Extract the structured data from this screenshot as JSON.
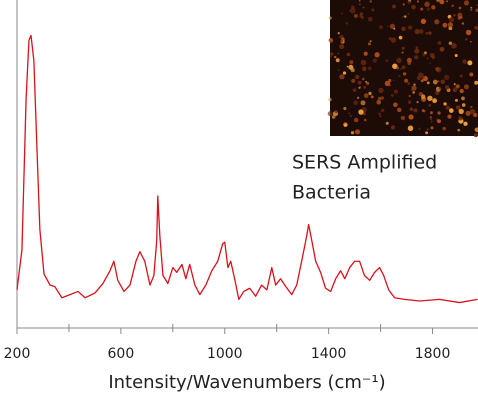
{
  "chart_data": {
    "type": "line",
    "annotation": [
      "SERS Amplified",
      "Bacteria"
    ],
    "xlabel": "Intensity/Wavenumbers (cm⁻¹)",
    "xlim": [
      200,
      1975
    ],
    "xticks": [
      200,
      600,
      1000,
      1400,
      1800
    ],
    "xminor_ticks": [
      400,
      800,
      1200,
      1600
    ],
    "ylim": [
      0,
      100
    ],
    "series": [
      {
        "color": "#d8121c",
        "x": [
          200,
          219,
          235,
          246,
          254,
          265,
          277,
          288,
          304,
          327,
          346,
          373,
          404,
          435,
          462,
          500,
          531,
          558,
          573,
          588,
          612,
          635,
          658,
          673,
          692,
          712,
          727,
          738,
          742,
          750,
          762,
          781,
          800,
          815,
          835,
          850,
          865,
          885,
          904,
          927,
          950,
          973,
          992,
          1000,
          1012,
          1023,
          1038,
          1054,
          1073,
          1096,
          1119,
          1142,
          1162,
          1181,
          1196,
          1215,
          1235,
          1258,
          1277,
          1296,
          1312,
          1323,
          1335,
          1350,
          1369,
          1388,
          1408,
          1427,
          1446,
          1462,
          1481,
          1500,
          1519,
          1538,
          1558,
          1577,
          1596,
          1612,
          1631,
          1654,
          1692,
          1750,
          1827,
          1904,
          1973
        ],
        "values": [
          12,
          24.5,
          72,
          90.5,
          92,
          84,
          56,
          31,
          17,
          13.5,
          13,
          9.5,
          10.5,
          11.5,
          9.5,
          11,
          14,
          18,
          21,
          15,
          11.5,
          13.5,
          21,
          24,
          21,
          13.5,
          16.5,
          27.5,
          41.5,
          29,
          16.5,
          14,
          19,
          17.5,
          20,
          15.5,
          20,
          13.5,
          10.5,
          13.5,
          18,
          21,
          26.5,
          27,
          19,
          21,
          15.5,
          9,
          11.5,
          12.5,
          10,
          13.5,
          12,
          19,
          13.5,
          15.5,
          13,
          10.5,
          13.5,
          21,
          27.5,
          32.5,
          27.5,
          21,
          17.5,
          12.5,
          11.5,
          15.5,
          18,
          15.5,
          19,
          21,
          21,
          16.5,
          15,
          17.5,
          19,
          16.5,
          12,
          9.5,
          9,
          8.5,
          9,
          8,
          9
        ]
      }
    ]
  }
}
